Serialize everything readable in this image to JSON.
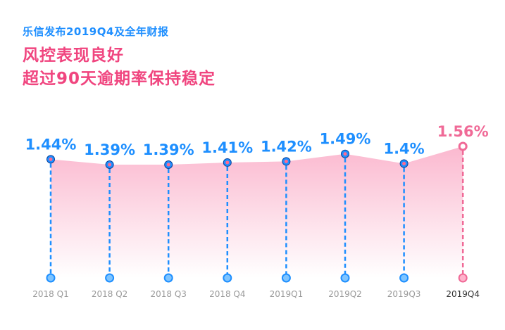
{
  "header": {
    "subtitle": "乐信发布2019Q4及全年财报",
    "title_line1": "风控表现良好",
    "title_line2": "超过90天逾期率保持稳定"
  },
  "colors": {
    "blue": "#1e8fff",
    "pink": "#f06a97",
    "area_top": "#fbb8cf",
    "area_bottom": "#ffffff"
  },
  "chart_data": {
    "type": "area",
    "categories": [
      "2018 Q1",
      "2018 Q2",
      "2018 Q3",
      "2018 Q4",
      "2019Q1",
      "2019Q2",
      "2019Q3",
      "2019Q4"
    ],
    "values": [
      1.44,
      1.39,
      1.39,
      1.41,
      1.42,
      1.49,
      1.4,
      1.56
    ],
    "data_labels": [
      "1.44%",
      "1.39%",
      "1.39%",
      "1.41%",
      "1.42%",
      "1.49%",
      "1.4%",
      "1.56%"
    ],
    "highlight_index": 7,
    "title": "",
    "xlabel": "",
    "ylabel": ""
  }
}
